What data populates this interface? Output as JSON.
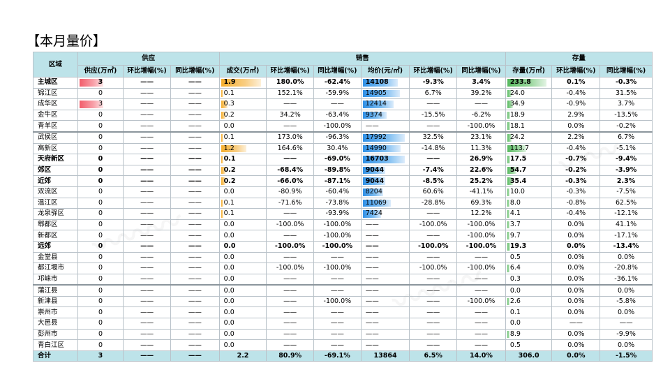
{
  "title": "【本月量价】",
  "headers": {
    "region": "区域",
    "groups": [
      "供应",
      "销售",
      "存量"
    ],
    "cols": [
      "供应(万㎡)",
      "环比增幅(%)",
      "同比增幅(%)",
      "成交(万㎡)",
      "环比增幅(%)",
      "同比增幅(%)",
      "均价(元/㎡)",
      "环比增幅(%)",
      "同比增幅(%)",
      "存量(万㎡)",
      "环比增幅(%)",
      "同比增幅(%)"
    ]
  },
  "colors": {
    "header_bg": "#bde3e9",
    "supply_bar": "#f25d6b",
    "deal_bar": "#f5ae2c",
    "price_bar": "#2f90e6",
    "stock_bar": "#56b85e"
  },
  "rows": [
    {
      "name": "主城区",
      "bold": true,
      "sep": false,
      "cells": [
        "3",
        "——",
        "——",
        "1.9",
        "180.0%",
        "-62.4%",
        "14108",
        "-9.3%",
        "3.4%",
        "233.8",
        "0.1%",
        "-0.3%"
      ],
      "bars": {
        "supply": 1,
        "deal": 0.95,
        "price": 0.84,
        "stock": 1
      }
    },
    {
      "name": "锦江区",
      "bold": false,
      "sep": false,
      "cells": [
        "0",
        "——",
        "——",
        "0.1",
        "152.1%",
        "-59.9%",
        "14905",
        "6.7%",
        "39.2%",
        "24.0",
        "-0.4%",
        "31.5%"
      ],
      "bars": {
        "supply": 0,
        "deal": 0.05,
        "price": 0.89,
        "stock": 0.1
      }
    },
    {
      "name": "成华区",
      "bold": false,
      "sep": false,
      "cells": [
        "3",
        "——",
        "——",
        "0.3",
        "——",
        "——",
        "12414",
        "——",
        "——",
        "34.9",
        "-0.9%",
        "3.7%"
      ],
      "bars": {
        "supply": 1,
        "deal": 0.15,
        "price": 0.74,
        "stock": 0.15
      }
    },
    {
      "name": "金牛区",
      "bold": false,
      "sep": false,
      "cells": [
        "0",
        "——",
        "——",
        "0.2",
        "34.2%",
        "-63.4%",
        "9374",
        "-15.5%",
        "-6.2%",
        "18.9",
        "2.9%",
        "-13.5%"
      ],
      "bars": {
        "supply": 0,
        "deal": 0.1,
        "price": 0.56,
        "stock": 0.08
      }
    },
    {
      "name": "青羊区",
      "bold": false,
      "sep": false,
      "cells": [
        "0",
        "——",
        "——",
        "0.0",
        "——",
        "-100.0%",
        "——",
        "——",
        "-100.0%",
        "18.1",
        "0.0%",
        "-0.2%"
      ],
      "bars": {
        "supply": 0,
        "deal": 0,
        "price": 0,
        "stock": 0.08
      }
    },
    {
      "name": "武侯区",
      "bold": false,
      "sep": true,
      "cells": [
        "0",
        "——",
        "——",
        "0.1",
        "173.0%",
        "-96.3%",
        "17992",
        "32.5%",
        "23.1%",
        "24.2",
        "2.2%",
        "6.7%"
      ],
      "bars": {
        "supply": 0,
        "deal": 0.05,
        "price": 1,
        "stock": 0.1
      }
    },
    {
      "name": "高新区",
      "bold": false,
      "sep": false,
      "cells": [
        "0",
        "——",
        "——",
        "1.2",
        "164.6%",
        "30.4%",
        "14990",
        "-14.8%",
        "11.3%",
        "113.7",
        "-0.4%",
        "-5.1%"
      ],
      "bars": {
        "supply": 0,
        "deal": 0.6,
        "price": 0.9,
        "stock": 0.49
      }
    },
    {
      "name": "天府新区",
      "bold": true,
      "sep": false,
      "cells": [
        "0",
        "——",
        "——",
        "0.1",
        "——",
        "-69.0%",
        "16703",
        "——",
        "26.9%",
        "17.5",
        "-0.7%",
        "-9.4%"
      ],
      "bars": {
        "supply": 0,
        "deal": 0.05,
        "price": 1,
        "stock": 0.07
      }
    },
    {
      "name": "郊区",
      "bold": true,
      "sep": false,
      "cells": [
        "0",
        "——",
        "——",
        "0.2",
        "-68.4%",
        "-89.8%",
        "9044",
        "-7.4%",
        "22.6%",
        "54.7",
        "-0.2%",
        "-3.9%"
      ],
      "bars": {
        "supply": 0,
        "deal": 0.1,
        "price": 0.54,
        "stock": 0.23
      }
    },
    {
      "name": "近郊",
      "bold": true,
      "sep": false,
      "cells": [
        "0",
        "——",
        "——",
        "0.2",
        "-66.0%",
        "-87.1%",
        "9044",
        "-8.5%",
        "25.2%",
        "35.4",
        "-0.3%",
        "2.3%"
      ],
      "bars": {
        "supply": 0,
        "deal": 0.1,
        "price": 0.54,
        "stock": 0.15
      }
    },
    {
      "name": "双流区",
      "bold": false,
      "sep": false,
      "cells": [
        "0",
        "——",
        "——",
        "0.0",
        "-80.9%",
        "-60.4%",
        "8204",
        "60.6%",
        "-41.1%",
        "10.0",
        "-0.3%",
        "-7.5%"
      ],
      "bars": {
        "supply": 0,
        "deal": 0,
        "price": 0.49,
        "stock": 0.04
      }
    },
    {
      "name": "温江区",
      "bold": false,
      "sep": false,
      "cells": [
        "0",
        "——",
        "——",
        "0.1",
        "-71.6%",
        "-73.8%",
        "11069",
        "-28.8%",
        "69.3%",
        "8.0",
        "-0.8%",
        "62.5%"
      ],
      "bars": {
        "supply": 0,
        "deal": 0.05,
        "price": 0.66,
        "stock": 0.03
      }
    },
    {
      "name": "龙泉驿区",
      "bold": false,
      "sep": false,
      "cells": [
        "0",
        "——",
        "——",
        "0.1",
        "——",
        "-93.9%",
        "7424",
        "——",
        "12.2%",
        "4.1",
        "-0.4%",
        "-12.1%"
      ],
      "bars": {
        "supply": 0,
        "deal": 0.05,
        "price": 0.44,
        "stock": 0.02
      }
    },
    {
      "name": "郫都区",
      "bold": false,
      "sep": false,
      "cells": [
        "0",
        "——",
        "——",
        "0.0",
        "-100.0%",
        "-100.0%",
        "——",
        "-100.0%",
        "-100.0%",
        "3.7",
        "0.0%",
        "41.1%"
      ],
      "bars": {
        "supply": 0,
        "deal": 0,
        "price": 0,
        "stock": 0.02
      }
    },
    {
      "name": "新都区",
      "bold": false,
      "sep": false,
      "cells": [
        "0",
        "——",
        "——",
        "0.0",
        "——",
        "-100.0%",
        "——",
        "——",
        "-100.0%",
        "9.7",
        "0.0%",
        "-17.1%"
      ],
      "bars": {
        "supply": 0,
        "deal": 0,
        "price": 0,
        "stock": 0.04
      }
    },
    {
      "name": "远郊",
      "bold": true,
      "sep": false,
      "cells": [
        "0",
        "——",
        "——",
        "0.0",
        "-100.0%",
        "-100.0%",
        "——",
        "-100.0%",
        "-100.0%",
        "19.3",
        "0.0%",
        "-13.4%"
      ],
      "bars": {
        "supply": 0,
        "deal": 0,
        "price": 0,
        "stock": 0.08
      }
    },
    {
      "name": "金堂县",
      "bold": false,
      "sep": false,
      "cells": [
        "0",
        "——",
        "——",
        "0.0",
        "——",
        "——",
        "——",
        "——",
        "——",
        "0.5",
        "0.0%",
        "0.0%"
      ],
      "bars": {
        "supply": 0,
        "deal": 0,
        "price": 0,
        "stock": 0
      }
    },
    {
      "name": "都江堰市",
      "bold": false,
      "sep": false,
      "cells": [
        "0",
        "——",
        "——",
        "0.0",
        "-100.0%",
        "-100.0%",
        "——",
        "-100.0%",
        "-100.0%",
        "6.4",
        "0.0%",
        "-20.8%"
      ],
      "bars": {
        "supply": 0,
        "deal": 0,
        "price": 0,
        "stock": 0.03
      }
    },
    {
      "name": "邛崃市",
      "bold": false,
      "sep": false,
      "cells": [
        "0",
        "——",
        "——",
        "0.0",
        "——",
        "——",
        "——",
        "——",
        "——",
        "0.3",
        "0.0%",
        "-36.1%"
      ],
      "bars": {
        "supply": 0,
        "deal": 0,
        "price": 0,
        "stock": 0
      }
    },
    {
      "name": "蒲江县",
      "bold": false,
      "sep": true,
      "cells": [
        "0",
        "——",
        "——",
        "0.0",
        "——",
        "——",
        "——",
        "——",
        "——",
        "0.0",
        "0.0%",
        "0.0%"
      ],
      "bars": {
        "supply": 0,
        "deal": 0,
        "price": 0,
        "stock": 0
      }
    },
    {
      "name": "新津县",
      "bold": false,
      "sep": false,
      "cells": [
        "0",
        "——",
        "——",
        "0.0",
        "——",
        "-100.0%",
        "——",
        "——",
        "-100.0%",
        "2.6",
        "0.0%",
        "-5.8%"
      ],
      "bars": {
        "supply": 0,
        "deal": 0,
        "price": 0,
        "stock": 0.01
      }
    },
    {
      "name": "崇州市",
      "bold": false,
      "sep": false,
      "cells": [
        "0",
        "——",
        "——",
        "0.0",
        "——",
        "——",
        "——",
        "——",
        "——",
        "0.1",
        "0.0%",
        "0.0%"
      ],
      "bars": {
        "supply": 0,
        "deal": 0,
        "price": 0,
        "stock": 0
      }
    },
    {
      "name": "大邑县",
      "bold": false,
      "sep": false,
      "cells": [
        "0",
        "——",
        "——",
        "0.0",
        "——",
        "——",
        "——",
        "——",
        "——",
        "0.0",
        "——",
        "——"
      ],
      "bars": {
        "supply": 0,
        "deal": 0,
        "price": 0,
        "stock": 0
      }
    },
    {
      "name": "彭州市",
      "bold": false,
      "sep": false,
      "cells": [
        "0",
        "——",
        "——",
        "0.0",
        "——",
        "——",
        "——",
        "——",
        "——",
        "8.9",
        "0.0%",
        "-9.9%"
      ],
      "bars": {
        "supply": 0,
        "deal": 0,
        "price": 0,
        "stock": 0.04
      }
    },
    {
      "name": "青白江区",
      "bold": false,
      "sep": false,
      "cells": [
        "0",
        "——",
        "——",
        "0.0",
        "——",
        "——",
        "——",
        "——",
        "——",
        "0.5",
        "0.0%",
        "0.0%"
      ],
      "bars": {
        "supply": 0,
        "deal": 0,
        "price": 0,
        "stock": 0
      }
    }
  ],
  "total": {
    "name": "合计",
    "cells": [
      "3",
      "——",
      "——",
      "2.2",
      "80.9%",
      "-69.1%",
      "13864",
      "6.5%",
      "14.0%",
      "306.0",
      "0.0%",
      "-1.5%"
    ]
  }
}
